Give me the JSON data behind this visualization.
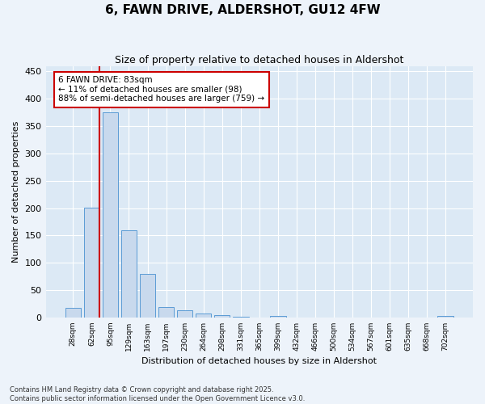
{
  "title": "6, FAWN DRIVE, ALDERSHOT, GU12 4FW",
  "subtitle": "Size of property relative to detached houses in Aldershot",
  "xlabel": "Distribution of detached houses by size in Aldershot",
  "ylabel": "Number of detached properties",
  "bar_color": "#c8d9ed",
  "bar_edge_color": "#5b9bd5",
  "background_color": "#dce9f5",
  "fig_background_color": "#edf3fa",
  "grid_color": "#ffffff",
  "categories": [
    "28sqm",
    "62sqm",
    "95sqm",
    "129sqm",
    "163sqm",
    "197sqm",
    "230sqm",
    "264sqm",
    "298sqm",
    "331sqm",
    "365sqm",
    "399sqm",
    "432sqm",
    "466sqm",
    "500sqm",
    "534sqm",
    "567sqm",
    "601sqm",
    "635sqm",
    "668sqm",
    "702sqm"
  ],
  "values": [
    17,
    201,
    375,
    159,
    80,
    19,
    13,
    7,
    5,
    2,
    0,
    3,
    0,
    0,
    0,
    0,
    0,
    0,
    0,
    0,
    3
  ],
  "property_line_x": 1.43,
  "annotation_text": "6 FAWN DRIVE: 83sqm\n← 11% of detached houses are smaller (98)\n88% of semi-detached houses are larger (759) →",
  "annotation_box_color": "#ffffff",
  "annotation_box_edgecolor": "#cc0000",
  "property_line_color": "#cc0000",
  "ylim": [
    0,
    460
  ],
  "yticks": [
    0,
    50,
    100,
    150,
    200,
    250,
    300,
    350,
    400,
    450
  ],
  "footer_line1": "Contains HM Land Registry data © Crown copyright and database right 2025.",
  "footer_line2": "Contains public sector information licensed under the Open Government Licence v3.0."
}
